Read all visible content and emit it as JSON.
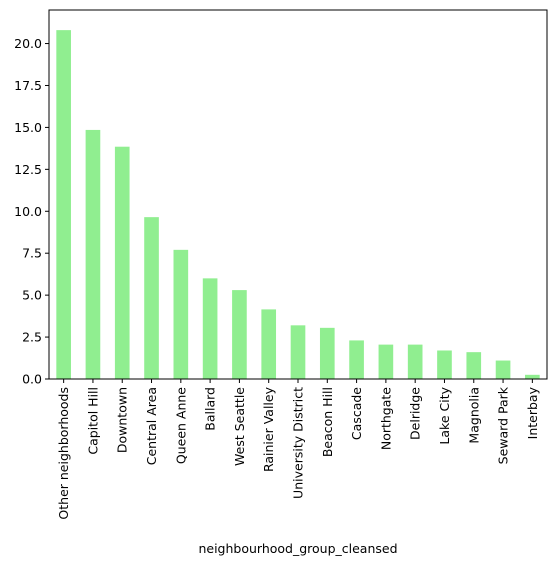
{
  "chart_data": {
    "type": "bar",
    "title": "",
    "xlabel": "neighbourhood_group_cleansed",
    "ylabel": "",
    "ylim": [
      0,
      22
    ],
    "yticks": [
      "0.0",
      "2.5",
      "5.0",
      "7.5",
      "10.0",
      "12.5",
      "15.0",
      "17.5",
      "20.0"
    ],
    "bar_color": "#90ee90",
    "grid": false,
    "legend": "none",
    "categories": [
      "Other neighborhoods",
      "Capitol Hill",
      "Downtown",
      "Central Area",
      "Queen Anne",
      "Ballard",
      "West Seattle",
      "Rainier Valley",
      "University District",
      "Beacon Hill",
      "Cascade",
      "Northgate",
      "Delridge",
      "Lake City",
      "Magnolia",
      "Seward Park",
      "Interbay"
    ],
    "values": [
      20.8,
      14.85,
      13.85,
      9.65,
      7.7,
      6.0,
      5.3,
      4.15,
      3.2,
      3.05,
      2.3,
      2.05,
      2.05,
      1.7,
      1.6,
      1.1,
      0.25
    ]
  }
}
